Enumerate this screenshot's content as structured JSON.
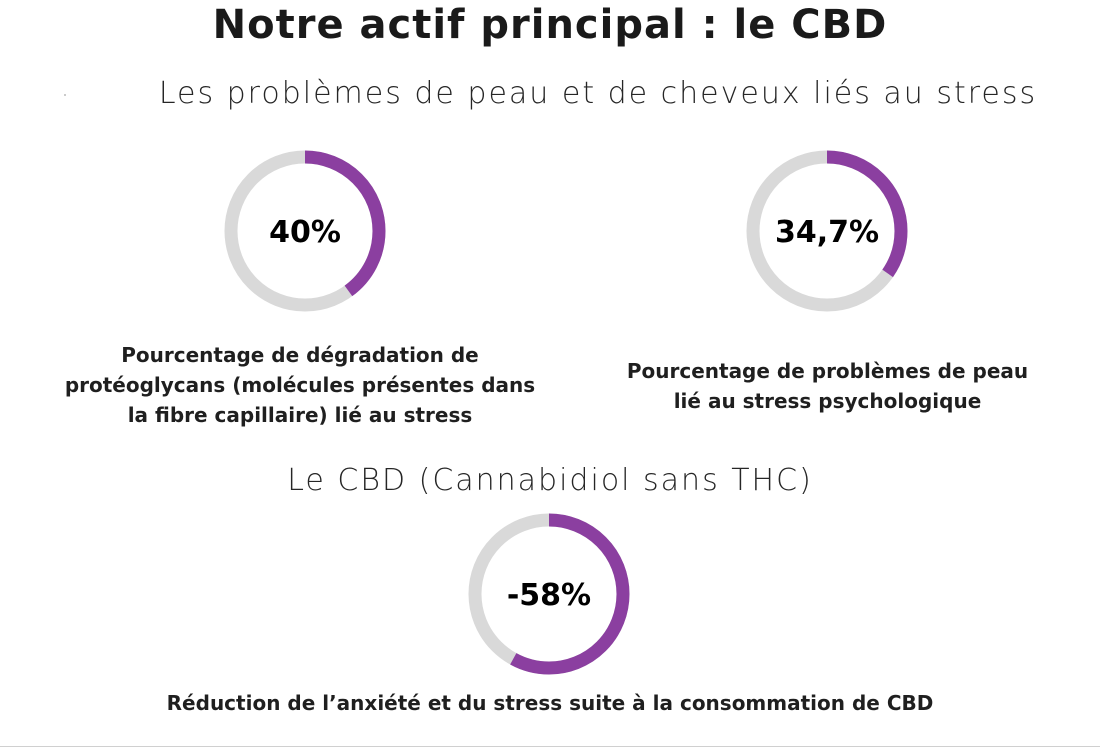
{
  "title": "Notre actif principal : le CBD",
  "section1": {
    "heading": "Les problèmes de peau et de cheveux liés au stress"
  },
  "section2": {
    "heading": "Le CBD (Cannabidiol sans THC)"
  },
  "colors": {
    "accent": "#8b3fa0",
    "track": "#d9d9d9"
  },
  "stats": [
    {
      "label": "40%",
      "percent": 40,
      "caption_lines": [
        "Pourcentage de dégradation de",
        "protéoglycans (molécules présentes dans",
        "la fibre capillaire) lié au stress"
      ]
    },
    {
      "label": "34,7%",
      "percent": 34.7,
      "caption_lines": [
        "Pourcentage de problèmes de peau",
        "lié au stress psychologique"
      ]
    },
    {
      "label": "-58%",
      "percent": 58,
      "caption_lines": [
        "Réduction de l’anxiété et du stress suite à la consommation de CBD"
      ]
    }
  ]
}
